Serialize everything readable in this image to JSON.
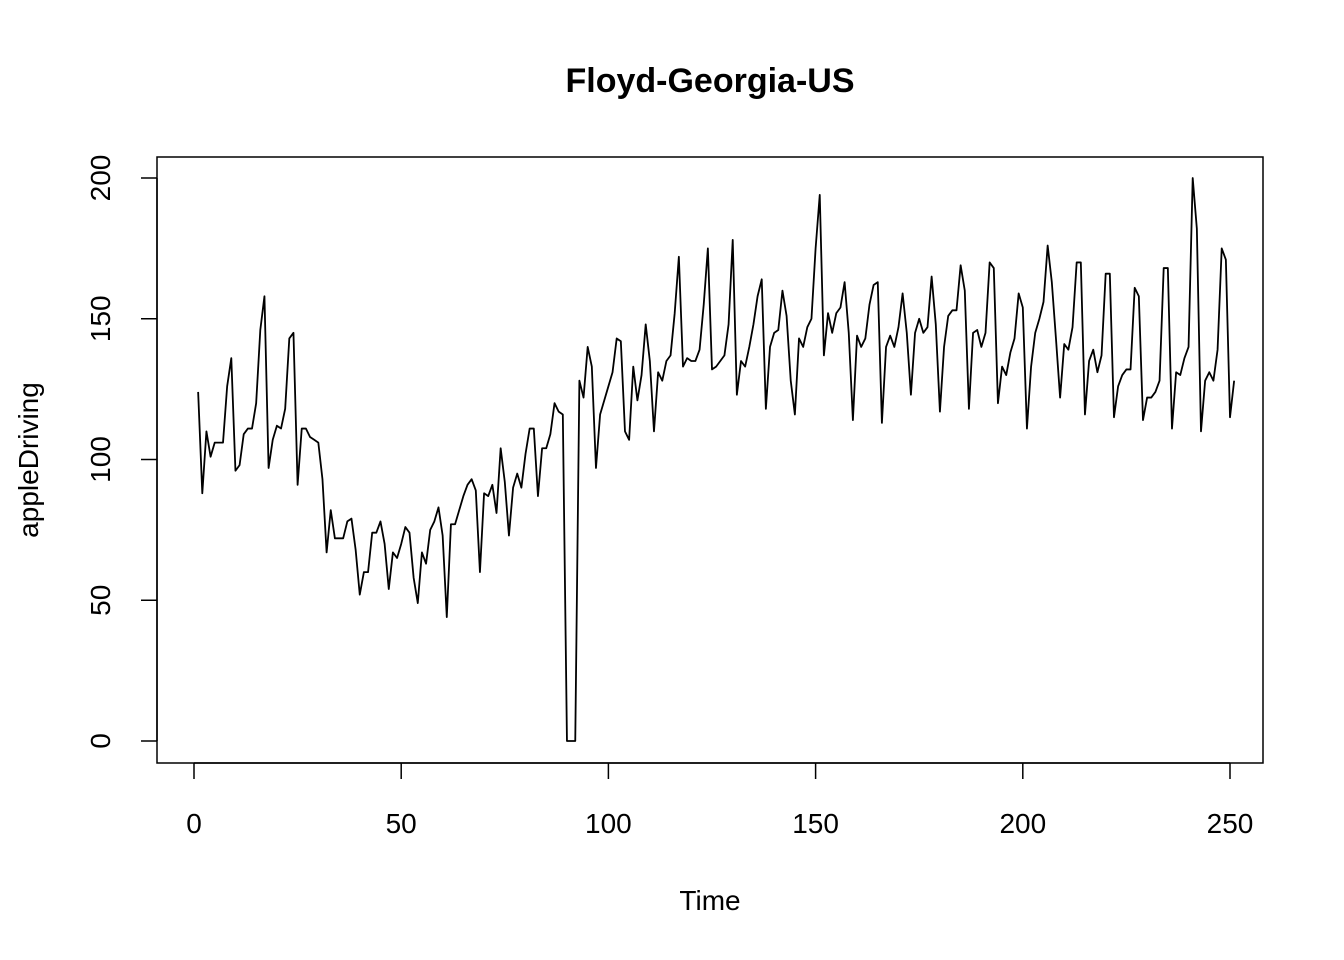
{
  "chart_data": {
    "type": "line",
    "title": "Floyd-Georgia-US",
    "xlabel": "Time",
    "ylabel": "appleDriving",
    "xlim": [
      1,
      248
    ],
    "ylim": [
      0,
      200
    ],
    "x_ticks": [
      0,
      50,
      100,
      150,
      200,
      250
    ],
    "y_ticks": [
      0,
      50,
      100,
      150,
      200
    ],
    "grid": false,
    "series": [
      {
        "values": [
          124,
          88,
          110,
          101,
          106,
          106,
          106,
          126,
          136,
          96,
          98,
          109,
          111,
          111,
          120,
          146,
          158,
          97,
          107,
          112,
          111,
          118,
          143,
          145,
          91,
          111,
          111,
          108,
          107,
          106,
          93,
          67,
          82,
          72,
          72,
          72,
          78,
          79,
          68,
          52,
          60,
          60,
          74,
          74,
          78,
          70,
          54,
          67,
          65,
          70,
          76,
          74,
          58,
          49,
          67,
          63,
          75,
          78,
          83,
          73,
          44,
          77,
          77,
          82,
          87,
          91,
          93,
          89,
          60,
          88,
          87,
          91,
          81,
          104,
          92,
          73,
          90,
          95,
          90,
          102,
          111,
          111,
          87,
          104,
          104,
          109,
          120,
          117,
          116,
          0,
          0,
          0,
          128,
          122,
          140,
          133,
          97,
          116,
          121,
          126,
          131,
          143,
          142,
          110,
          107,
          133,
          121,
          130,
          148,
          135,
          110,
          131,
          128,
          135,
          137,
          152,
          172,
          133,
          136,
          135,
          135,
          139,
          155,
          175,
          132,
          133,
          135,
          137,
          148,
          178,
          123,
          135,
          133,
          140,
          148,
          158,
          164,
          118,
          140,
          145,
          146,
          160,
          151,
          128,
          116,
          143,
          140,
          147,
          150,
          175,
          194,
          137,
          152,
          145,
          152,
          154,
          163,
          145,
          114,
          144,
          140,
          143,
          155,
          162,
          163,
          113,
          140,
          144,
          140,
          147,
          159,
          145,
          123,
          145,
          150,
          145,
          147,
          165,
          148,
          117,
          140,
          151,
          153,
          153,
          169,
          160,
          118,
          145,
          146,
          140,
          145,
          170,
          168,
          120,
          133,
          130,
          138,
          143,
          159,
          154,
          111,
          133,
          145,
          150,
          156,
          176,
          163,
          143,
          122,
          141,
          139,
          147,
          170,
          170,
          116,
          135,
          139,
          131,
          137,
          166,
          166,
          115,
          126,
          130,
          132,
          132,
          161,
          158,
          114,
          122,
          122,
          124,
          128,
          168,
          168,
          111,
          131,
          130,
          136,
          140,
          200,
          182,
          110,
          128,
          131,
          128,
          139,
          175,
          171,
          115,
          128
        ]
      }
    ]
  }
}
